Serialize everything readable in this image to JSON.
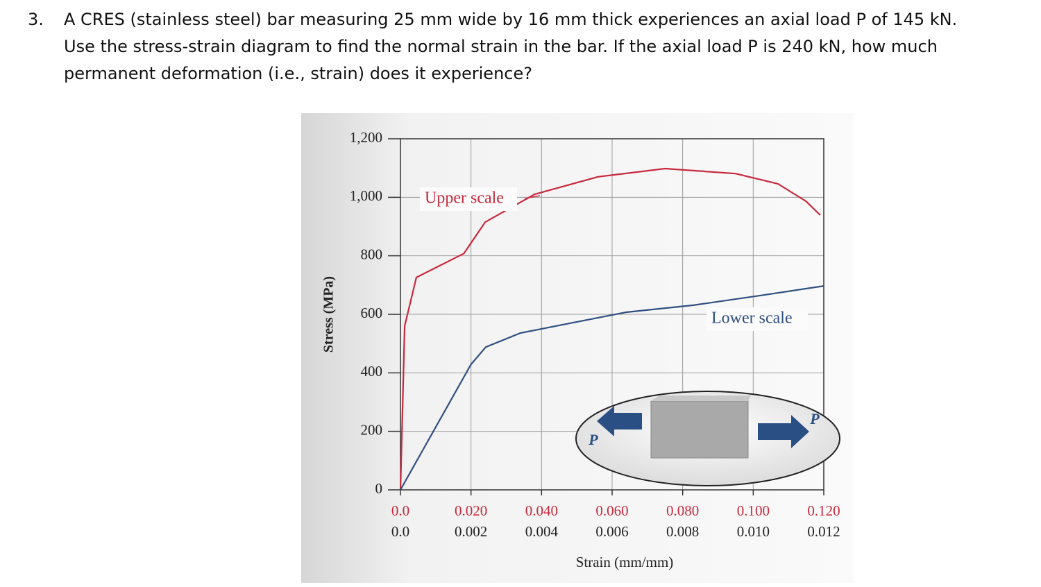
{
  "question": {
    "number": "3.",
    "lines": [
      "A CRES (stainless steel) bar measuring 25 mm wide by 16 mm thick experiences an axial load P of 145 kN.",
      "Use the stress-strain diagram to find the normal strain in the bar. If the axial load P is 240 kN, how much",
      "permanent deformation (i.e., strain) does it experience?"
    ]
  },
  "chart_data": {
    "type": "line",
    "xlabel": "Strain (mm/mm)",
    "ylabel": "Stress (MPa)",
    "ylim": [
      0,
      1200
    ],
    "yticks": [
      0,
      200,
      400,
      600,
      800,
      {
        "value": 1000,
        "label": "1,000"
      },
      {
        "value": 1200,
        "label": "1,200"
      }
    ],
    "xlim": [
      0,
      0.012
    ],
    "xticks": [
      {
        "value": 0,
        "label": "0.0"
      },
      0.002,
      0.004,
      0.006,
      0.008,
      {
        "value": 0.01,
        "label": "0.010"
      },
      0.012
    ],
    "x2lim": [
      0,
      0.12
    ],
    "x2ticks": [
      {
        "value": 0,
        "label": "0.0"
      },
      {
        "value": 0.02,
        "label": "0.020"
      },
      {
        "value": 0.04,
        "label": "0.040"
      },
      {
        "value": 0.06,
        "label": "0.060"
      },
      {
        "value": 0.08,
        "label": "0.080"
      },
      {
        "value": 0.1,
        "label": "0.100"
      },
      {
        "value": 0.12,
        "label": "0.120"
      }
    ],
    "grid": true,
    "series": [
      {
        "name": "Upper scale",
        "color": "#c8283c",
        "axis": "x2",
        "x": [
          0,
          0.0012,
          0.0045,
          0.018,
          0.024,
          0.038,
          0.056,
          0.075,
          0.095,
          0.107,
          0.115,
          0.119
        ],
        "values": [
          0,
          560,
          726,
          808,
          915,
          1010,
          1070,
          1098,
          1081,
          1046,
          986,
          939
        ]
      },
      {
        "name": "Lower scale",
        "color": "#2f4f80",
        "x": [
          0,
          0.002,
          0.00242,
          0.0034,
          0.0044,
          0.0064,
          0.0083,
          0.0103,
          0.012
        ],
        "values": [
          0,
          429,
          488,
          536,
          560,
          607,
          631,
          666,
          697
        ]
      }
    ],
    "inset_labels": [
      "P",
      "P"
    ]
  }
}
